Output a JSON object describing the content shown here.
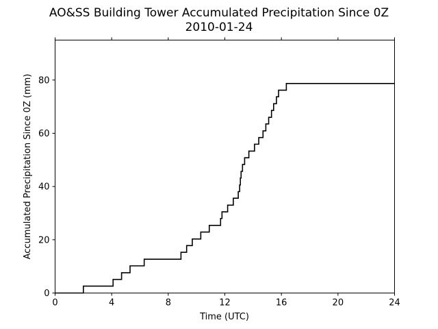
{
  "chart_data": {
    "type": "line",
    "title": "AO&SS Building Tower Accumulated Precipitation Since 0Z",
    "subtitle": "2010-01-24",
    "xlabel": "Time (UTC)",
    "ylabel": "Accumulated Precipitation Since 0Z (mm)",
    "xlim": [
      0,
      24
    ],
    "ylim": [
      0,
      95
    ],
    "xticks": [
      0,
      4,
      8,
      12,
      16,
      20,
      24
    ],
    "yticks": [
      0,
      20,
      40,
      60,
      80
    ],
    "grid": false,
    "legend": "none",
    "line_color": "#000000",
    "step": true,
    "series": [
      {
        "x": [
          0,
          2.0,
          4.1,
          4.7,
          5.3,
          6.3,
          8.9,
          9.3,
          9.7,
          10.3,
          10.9,
          11.7,
          11.8,
          12.2,
          12.6,
          12.95,
          13.05,
          13.1,
          13.15,
          13.25,
          13.4,
          13.7,
          14.1,
          14.4,
          14.7,
          14.9,
          15.1,
          15.3,
          15.45,
          15.65,
          15.8,
          16.35,
          24
        ],
        "values": [
          0,
          2.6,
          5.1,
          7.6,
          10.2,
          12.7,
          15.3,
          17.8,
          20.3,
          22.9,
          25.4,
          28.0,
          30.5,
          33.0,
          35.6,
          38.1,
          40.6,
          43.2,
          45.7,
          48.3,
          50.8,
          53.3,
          55.9,
          58.4,
          60.9,
          63.5,
          66.0,
          68.6,
          71.1,
          73.7,
          76.2,
          78.7,
          78.7
        ]
      }
    ]
  }
}
